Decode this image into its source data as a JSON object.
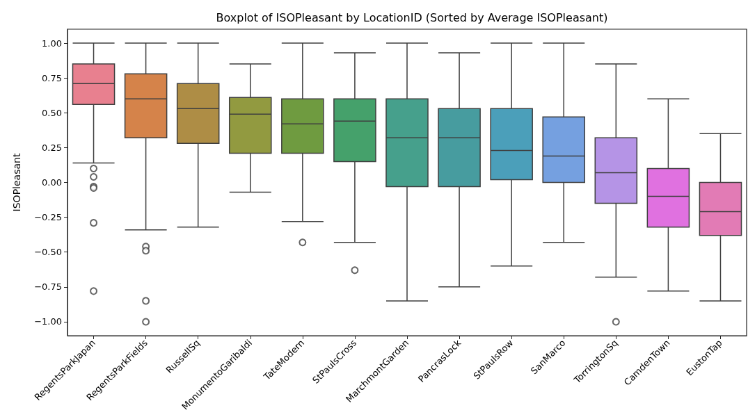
{
  "chart_data": {
    "type": "box",
    "title": "Boxplot of ISOPleasant by LocationID (Sorted by Average ISOPleasant)",
    "ylabel": "ISOPleasant",
    "categories": [
      "RegentsParkJapan",
      "RegentsParkFields",
      "RussellSq",
      "MonumentoGaribaldi",
      "TateModern",
      "StPaulsCross",
      "MarchmontGarden",
      "PancrasLock",
      "StPaulsRow",
      "SanMarco",
      "TorringtonSq",
      "CamdenTown",
      "EustonTap"
    ],
    "colors": [
      "#e8808f",
      "#d5834a",
      "#ae8d45",
      "#929a40",
      "#6f9b40",
      "#45a16b",
      "#46a08c",
      "#479c9f",
      "#4b9fba",
      "#75a0e0",
      "#b594e6",
      "#e071e0",
      "#e27bb5"
    ],
    "boxes": [
      {
        "low": 0.14,
        "q1": 0.56,
        "median": 0.71,
        "q3": 0.85,
        "high": 1.0,
        "outliers": [
          0.1,
          0.04,
          -0.03,
          -0.04,
          -0.29,
          -0.78
        ]
      },
      {
        "low": -0.34,
        "q1": 0.32,
        "median": 0.6,
        "q3": 0.78,
        "high": 1.0,
        "outliers": [
          -0.46,
          -0.49,
          -0.85,
          -1.0
        ]
      },
      {
        "low": -0.32,
        "q1": 0.28,
        "median": 0.53,
        "q3": 0.71,
        "high": 1.0
      },
      {
        "low": -0.07,
        "q1": 0.21,
        "median": 0.49,
        "q3": 0.61,
        "high": 0.85
      },
      {
        "low": -0.28,
        "q1": 0.21,
        "median": 0.42,
        "q3": 0.6,
        "high": 1.0,
        "outliers": [
          -0.43
        ]
      },
      {
        "low": -0.43,
        "q1": 0.15,
        "median": 0.44,
        "q3": 0.6,
        "high": 0.93,
        "outliers": [
          -0.63
        ]
      },
      {
        "low": -0.85,
        "q1": -0.03,
        "median": 0.32,
        "q3": 0.6,
        "high": 1.0
      },
      {
        "low": -0.75,
        "q1": -0.03,
        "median": 0.32,
        "q3": 0.53,
        "high": 0.93
      },
      {
        "low": -0.6,
        "q1": 0.02,
        "median": 0.23,
        "q3": 0.53,
        "high": 1.0
      },
      {
        "low": -0.43,
        "q1": 0.0,
        "median": 0.19,
        "q3": 0.47,
        "high": 1.0
      },
      {
        "low": -0.68,
        "q1": -0.15,
        "median": 0.07,
        "q3": 0.32,
        "high": 0.85,
        "outliers": [
          -1.0
        ]
      },
      {
        "low": -0.78,
        "q1": -0.32,
        "median": -0.1,
        "q3": 0.1,
        "high": 0.6
      },
      {
        "low": -0.85,
        "q1": -0.38,
        "median": -0.21,
        "q3": 0.0,
        "high": 0.35
      }
    ],
    "ylim": [
      -1.1,
      1.1
    ],
    "yticks": [
      {
        "value": -1,
        "label": "−1.00"
      },
      {
        "value": -0.75,
        "label": "−0.75"
      },
      {
        "value": -0.5,
        "label": "−0.50"
      },
      {
        "value": -0.25,
        "label": "−0.25"
      },
      {
        "value": 0,
        "label": "0.00"
      },
      {
        "value": 0.25,
        "label": "0.25"
      },
      {
        "value": 0.5,
        "label": "0.50"
      },
      {
        "value": 0.75,
        "label": "0.75"
      },
      {
        "value": 1,
        "label": "1.00"
      }
    ],
    "grid": false
  }
}
